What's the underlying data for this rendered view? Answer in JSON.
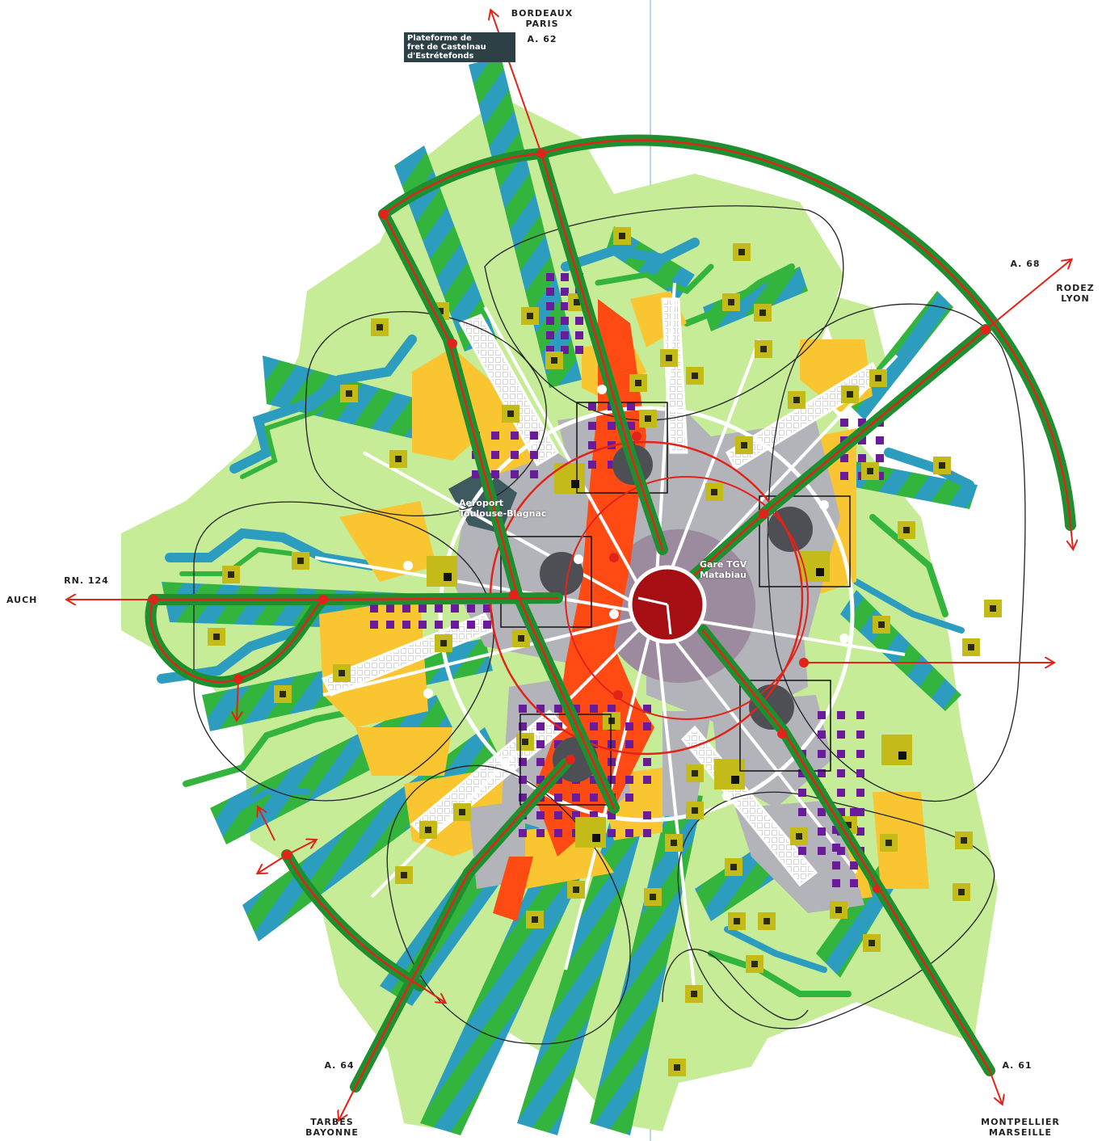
{
  "colors": {
    "light_green": "#c6ec97",
    "green": "#33b43c",
    "teal": "#2c9dbf",
    "yellow": "#f9c531",
    "grey": "#b3b4ba",
    "dark_grey": "#5f5f66",
    "orange_red": "#ff4a14",
    "dark_red": "#a50f13",
    "purple": "#6a1b9a",
    "olive": "#c4bb19",
    "road_green": "#1e8f2e",
    "road_red": "#e2231a",
    "center_mauve": "#9c8a9e"
  },
  "directions": {
    "north": {
      "line1": "BORDEAUX",
      "line2": "PARIS",
      "road": "A. 62"
    },
    "northeast": {
      "road": "A. 68",
      "line1": "RODEZ",
      "line2": "LYON"
    },
    "west": {
      "road": "RN. 124",
      "city": "AUCH"
    },
    "southwest": {
      "road": "A. 64",
      "line1": "TARBES",
      "line2": "BAYONNE"
    },
    "southeast": {
      "road": "A. 61",
      "line1": "MONTPELLIER",
      "line2": "MARSEILLE"
    }
  },
  "places": {
    "platform": {
      "line1": "Plateforme de",
      "line2": "fret de Castelnau",
      "line3": "d'Estrétefonds"
    },
    "airport": {
      "line1": "Aeroport",
      "line2": "Toulouse-Blagnac"
    },
    "station": {
      "line1": "Gare TGV",
      "line2": "Matabiau"
    }
  },
  "icons": [
    "north-arrow-icon",
    "northeast-arrow-icon",
    "west-arrow-icon",
    "east-arrow-icon",
    "southwest-arrow-icon",
    "southeast-arrow-icon"
  ]
}
